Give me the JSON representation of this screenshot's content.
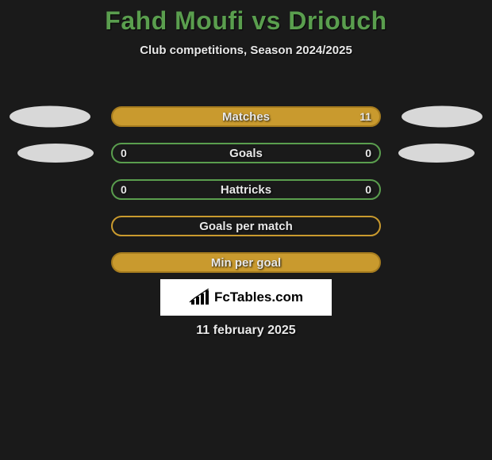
{
  "title": "Fahd Moufi vs Driouch",
  "subtitle": "Club competitions, Season 2024/2025",
  "date": "11 february 2025",
  "logo_text": "FcTables.com",
  "colors": {
    "background": "#1a1a1a",
    "title_color": "#5a9e4e",
    "text_color": "#e8e8e8",
    "ellipse_color": "#d8d8d8",
    "logo_bg": "#ffffff"
  },
  "stats": [
    {
      "label": "Matches",
      "left_value": "",
      "right_value": "11",
      "bar_bg": "#c99a2e",
      "bar_border": "#a67c1f",
      "show_ellipses": "large"
    },
    {
      "label": "Goals",
      "left_value": "0",
      "right_value": "0",
      "bar_bg": "#1a1a1a",
      "bar_border": "#5a9e4e",
      "show_ellipses": "small"
    },
    {
      "label": "Hattricks",
      "left_value": "0",
      "right_value": "0",
      "bar_bg": "#1a1a1a",
      "bar_border": "#5a9e4e",
      "show_ellipses": "none"
    },
    {
      "label": "Goals per match",
      "left_value": "",
      "right_value": "",
      "bar_bg": "#1a1a1a",
      "bar_border": "#c99a2e",
      "show_ellipses": "none"
    },
    {
      "label": "Min per goal",
      "left_value": "",
      "right_value": "",
      "bar_bg": "#c99a2e",
      "bar_border": "#a67c1f",
      "show_ellipses": "none"
    }
  ]
}
